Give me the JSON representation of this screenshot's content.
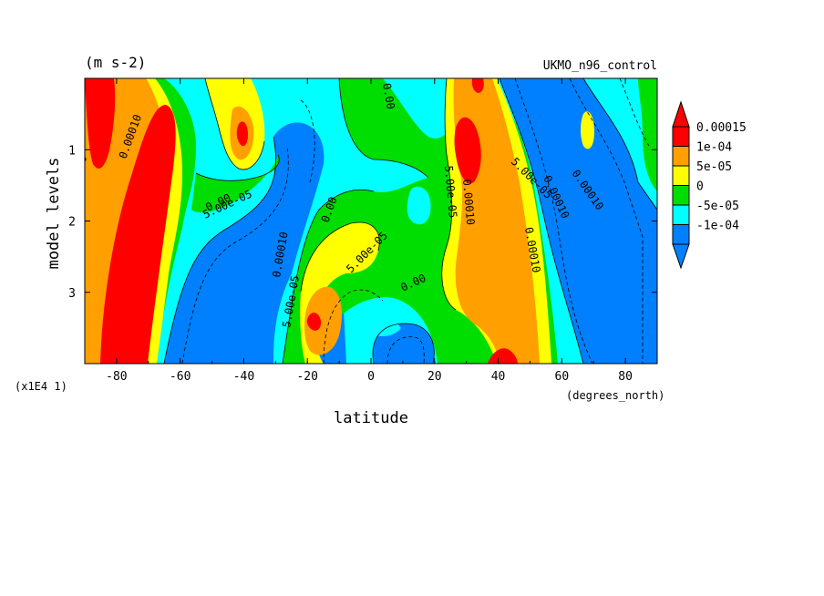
{
  "chart_data": {
    "type": "heatmap",
    "units_label": "(m s-2)",
    "title_right": "UKMO_n96_control",
    "xlabel": "latitude",
    "x_units": "(degrees_north)",
    "ylabel": "model levels",
    "y_scale_note": "(x1E4 1)",
    "xlim": [
      -90,
      90
    ],
    "ylim": [
      4,
      0
    ],
    "x_ticks": [
      -80,
      -60,
      -40,
      -20,
      0,
      20,
      40,
      60,
      80
    ],
    "y_ticks": [
      1,
      2,
      3
    ],
    "legend": {
      "position": "right",
      "levels": [
        "0.00015",
        "1e-04",
        "5e-05",
        "0",
        "-5e-05",
        "-1e-04"
      ],
      "colors": [
        "#ff0000",
        "#ff9f00",
        "#ffff00",
        "#00dd00",
        "#00ffff",
        "#0080ff"
      ],
      "under_color": "#0080ff",
      "over_color": "#ff0000"
    },
    "contour_labels": [
      "0.00010",
      "5.00e-05",
      "0.00",
      "0.00",
      "5.00e-05",
      "0.00010",
      "5.00e-05",
      "0.00",
      "0.00010",
      "0.00010",
      "5.00e-05",
      "0.00010",
      "0.00010",
      "5.00e-05",
      "0.00",
      "0.00"
    ]
  },
  "colors": {
    "red": "#ff0000",
    "orange": "#ff9f00",
    "yellow": "#ffff00",
    "green": "#00dd00",
    "cyan": "#00ffff",
    "blue": "#0080ff"
  }
}
